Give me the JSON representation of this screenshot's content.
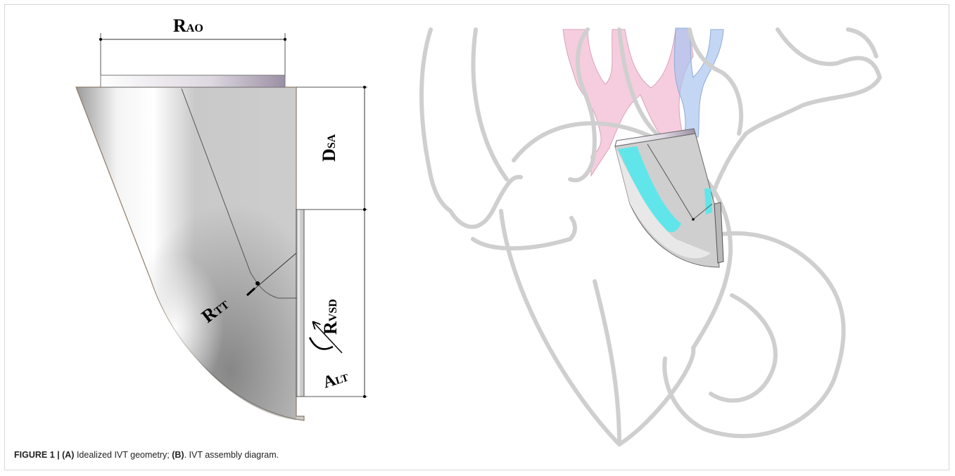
{
  "labels": {
    "r_ao": {
      "main": "R",
      "sub": "AO"
    },
    "d_sa": {
      "main": "D",
      "sub": "SA"
    },
    "r_tt": {
      "main": "R",
      "sub": "TT"
    },
    "r_vsd": {
      "main": "R",
      "sub": "VSD"
    },
    "a_lt": {
      "main": "A",
      "sub": "LT"
    }
  },
  "caption": {
    "figure": "FIGURE 1 |",
    "a_tag": "(A)",
    "a_text": " Idealized IVT geometry; ",
    "b_tag": "(B)",
    "b_text": ". IVT assembly diagram."
  },
  "colors": {
    "tunnel_fill": "#cfcfcf",
    "highlight": "#60e6ea",
    "heart_outline": "#cfcfcf",
    "aorta": "#f2b8d0",
    "vena": "#a9c4ef"
  }
}
